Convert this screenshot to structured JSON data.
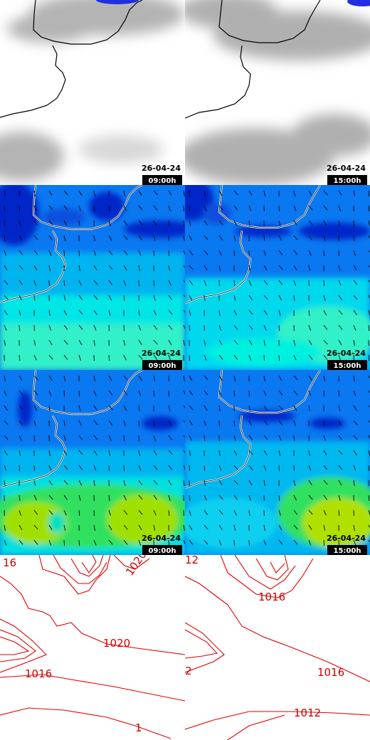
{
  "panels": [
    {
      "date": "26-04-24",
      "time": "09:00h"
    },
    {
      "date": "26-04-24",
      "time": "15:00h"
    },
    {
      "date": "26-04-24",
      "time": "09:00h"
    },
    {
      "date": "26-04-24",
      "time": "15:00h"
    },
    {
      "date": "26-04-24",
      "time": "09:00h"
    },
    {
      "date": "26-04-24",
      "time": "15:00h"
    }
  ],
  "isobar_labels": {
    "left": [
      "16",
      "1020",
      "1020",
      "1016",
      "1"
    ],
    "right": [
      "12",
      "1016",
      "2",
      "1016",
      "1012"
    ]
  }
}
